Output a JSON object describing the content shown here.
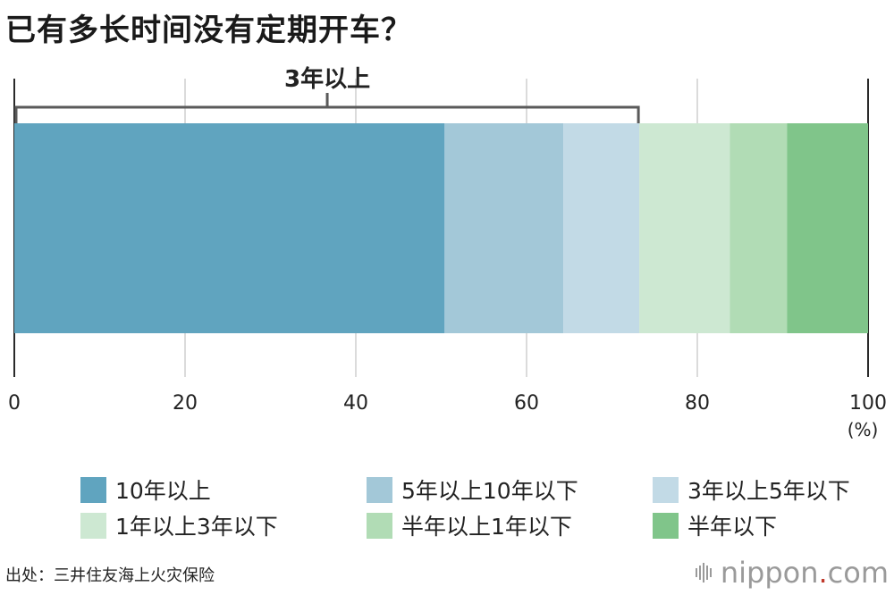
{
  "title": "已有多长时间没有定期开车？",
  "bracket": {
    "label": "3年以上",
    "from": 0,
    "to": 73.1
  },
  "chart_data": {
    "type": "bar",
    "orientation": "horizontal",
    "stacked": true,
    "xlim": [
      0,
      100
    ],
    "xticks": [
      "0",
      "20",
      "40",
      "60",
      "80",
      "100"
    ],
    "xunit": "(%)",
    "grid": true,
    "legend_position": "bottom",
    "series": [
      {
        "name": "10年以上",
        "value": 50.4,
        "color": "#60a4bf"
      },
      {
        "name": "5年以上10年以下",
        "value": 13.9,
        "color": "#a3c8d8"
      },
      {
        "name": "3年以上5年以下",
        "value": 8.9,
        "color": "#c2dae6"
      },
      {
        "name": "1年以上3年以下",
        "value": 10.6,
        "color": "#cde8d2"
      },
      {
        "name": "半年以上1年以下",
        "value": 6.7,
        "color": "#b1dcb5"
      },
      {
        "name": "半年以下",
        "value": 9.5,
        "color": "#80c58a"
      }
    ]
  },
  "source": "出处：三井住友海上火灾保险",
  "logo": {
    "text_main": "nippon",
    "text_dot": ".",
    "text_tail": "com"
  }
}
